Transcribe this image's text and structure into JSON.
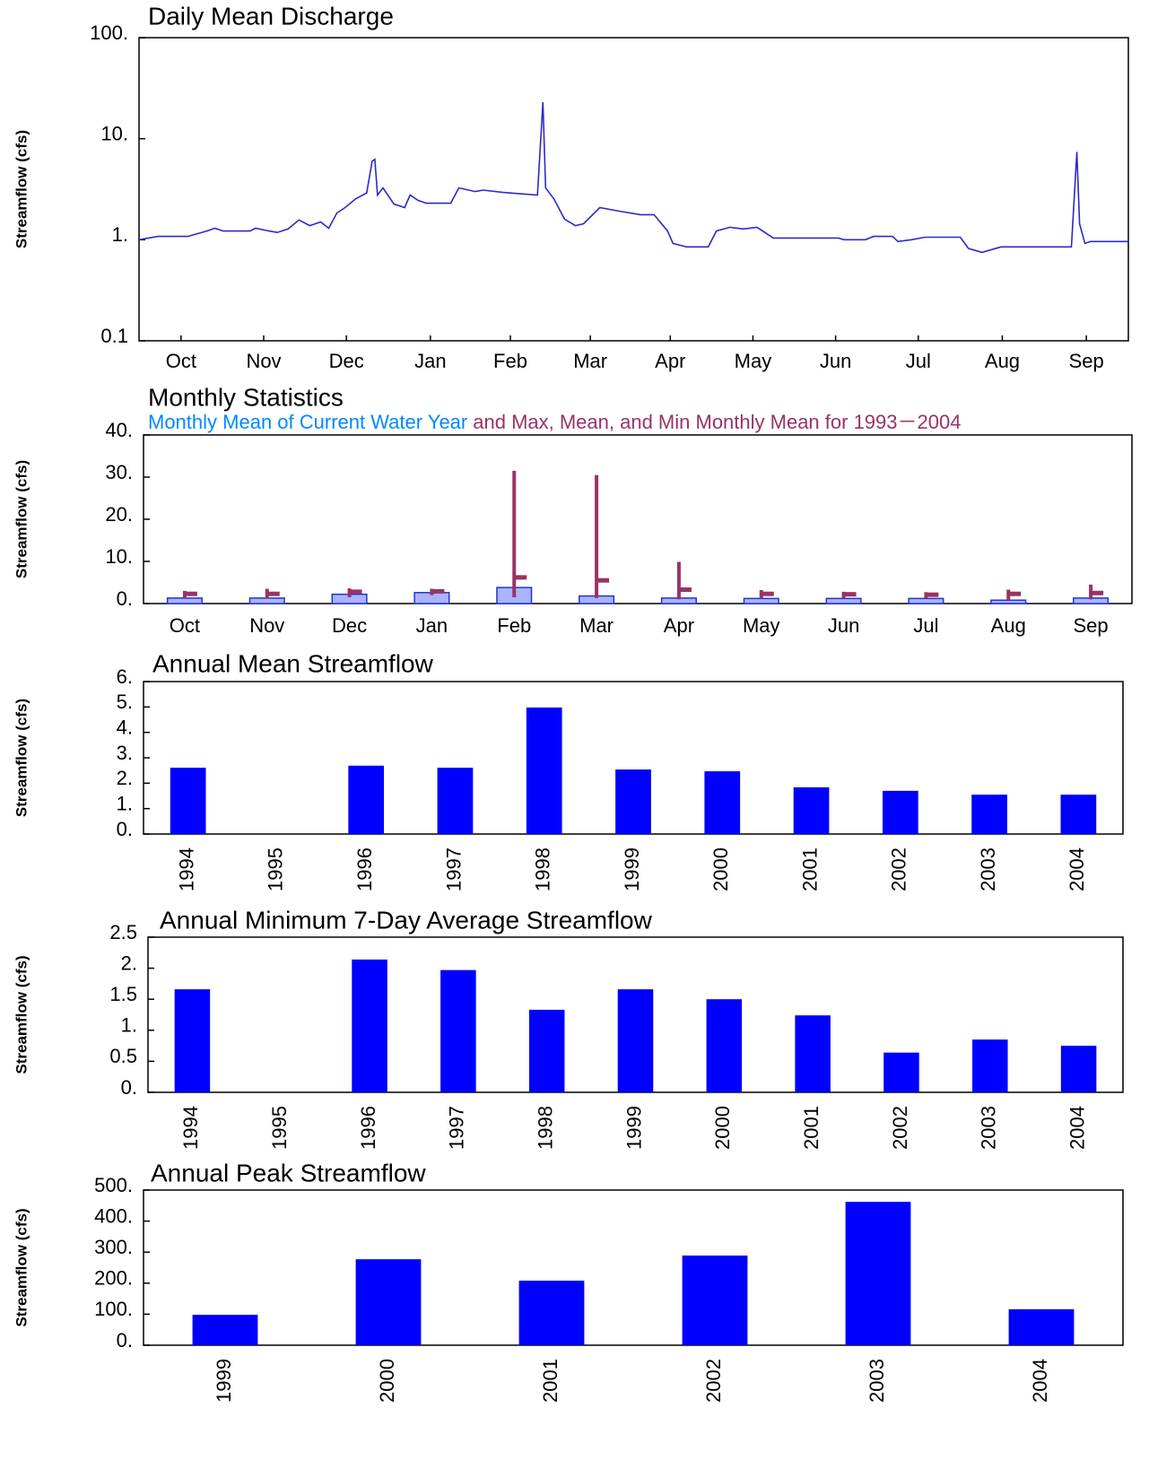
{
  "chart_data": [
    {
      "type": "line",
      "title": "Daily Mean Discharge",
      "ylabel": "Streamflow (cfs)",
      "log_y": true,
      "ylim": [
        0.1,
        100
      ],
      "yticks": [
        {
          "value": 100,
          "label": "100."
        },
        {
          "value": 10,
          "label": "10."
        },
        {
          "value": 1,
          "label": "1."
        },
        0.1
      ],
      "xlim": [
        0,
        365
      ],
      "xticks": [
        {
          "value": 15.5,
          "label": "Oct"
        },
        {
          "value": 46,
          "label": "Nov"
        },
        {
          "value": 76.5,
          "label": "Dec"
        },
        {
          "value": 107.5,
          "label": "Jan"
        },
        {
          "value": 137,
          "label": "Feb"
        },
        {
          "value": 166.5,
          "label": "Mar"
        },
        {
          "value": 196,
          "label": "Apr"
        },
        {
          "value": 226.5,
          "label": "May"
        },
        {
          "value": 257,
          "label": "Jun"
        },
        {
          "value": 287.5,
          "label": "Jul"
        },
        {
          "value": 318.5,
          "label": "Aug"
        },
        {
          "value": 349.5,
          "label": "Sep"
        }
      ],
      "x": [
        0,
        7,
        18,
        25,
        28,
        31,
        41,
        43,
        48,
        51,
        55,
        59,
        63,
        67,
        70,
        73,
        76,
        80,
        84,
        86,
        87,
        88,
        90,
        94,
        98,
        100,
        103,
        106,
        115,
        118,
        124,
        127,
        134,
        137,
        147,
        149,
        150,
        153,
        157,
        161,
        164,
        170,
        177,
        185,
        190,
        195,
        197,
        202,
        210,
        213,
        218,
        223,
        228,
        234,
        240,
        246,
        258,
        260,
        268,
        271,
        278,
        280,
        285,
        290,
        303,
        306,
        311,
        318,
        326,
        334,
        344,
        346,
        347,
        349,
        351,
        365
      ],
      "series": [
        {
          "color": "#2a2acc",
          "values": [
            1.0,
            1.08,
            1.08,
            1.22,
            1.3,
            1.22,
            1.22,
            1.3,
            1.22,
            1.18,
            1.28,
            1.57,
            1.38,
            1.5,
            1.3,
            1.84,
            2.08,
            2.55,
            2.9,
            6.0,
            6.25,
            2.77,
            3.26,
            2.26,
            2.08,
            2.77,
            2.45,
            2.3,
            2.3,
            3.26,
            3.0,
            3.1,
            2.95,
            2.9,
            2.77,
            23,
            3.26,
            2.55,
            1.6,
            1.38,
            1.44,
            2.08,
            1.92,
            1.77,
            1.77,
            1.22,
            0.92,
            0.85,
            0.85,
            1.22,
            1.33,
            1.28,
            1.33,
            1.04,
            1.04,
            1.04,
            1.04,
            1.0,
            1.0,
            1.08,
            1.08,
            0.96,
            1.0,
            1.06,
            1.06,
            0.82,
            0.75,
            0.85,
            0.85,
            0.85,
            0.85,
            7.4,
            1.44,
            0.92,
            0.96,
            0.96
          ]
        }
      ]
    },
    {
      "type": "monthly",
      "title": "Monthly Statistics",
      "ylabel": "Streamflow (cfs)",
      "ylim": [
        0,
        40
      ],
      "yticks": [
        {
          "value": 0,
          "label": "0."
        },
        {
          "value": 10,
          "label": "10."
        },
        {
          "value": 20,
          "label": "20."
        },
        {
          "value": 30,
          "label": "30."
        },
        {
          "value": 40,
          "label": "40."
        }
      ],
      "categories": [
        "Oct",
        "Nov",
        "Dec",
        "Jan",
        "Feb",
        "Mar",
        "Apr",
        "May",
        "Jun",
        "Jul",
        "Aug",
        "Sep"
      ],
      "series": [
        {
          "name": "Monthly Mean of Current Water Year",
          "color": "#0088ff",
          "values": [
            1.3,
            1.3,
            2.2,
            2.6,
            3.8,
            1.8,
            1.3,
            1.2,
            1.2,
            1.2,
            0.8,
            1.3
          ]
        },
        {
          "name": "and Max, Mean, and Min Monthly Mean for 1993－2004",
          "color": "#993366",
          "max": [
            3.0,
            3.5,
            3.6,
            3.5,
            31.5,
            30.5,
            9.9,
            3.2,
            2.8,
            2.7,
            3.3,
            4.5
          ],
          "mean": [
            2.3,
            2.3,
            2.8,
            2.9,
            6.2,
            5.5,
            3.3,
            2.3,
            2.2,
            2.1,
            2.3,
            2.5
          ],
          "min": [
            1.3,
            1.2,
            1.5,
            2.0,
            1.5,
            1.3,
            1.0,
            1.2,
            1.2,
            1.2,
            0.8,
            1.0
          ]
        }
      ]
    },
    {
      "type": "bar",
      "title": "Annual Mean Streamflow",
      "ylabel": "Streamflow (cfs)",
      "color": "#0000ff",
      "ylim": [
        0,
        6
      ],
      "yticks": [
        {
          "value": 0,
          "label": "0."
        },
        {
          "value": 1,
          "label": "1."
        },
        {
          "value": 2,
          "label": "2."
        },
        {
          "value": 3,
          "label": "3."
        },
        {
          "value": 4,
          "label": "4."
        },
        {
          "value": 5,
          "label": "5."
        },
        {
          "value": 6,
          "label": "6."
        }
      ],
      "categories": [
        "1994",
        "1995",
        "1996",
        "1997",
        "1998",
        "1999",
        "2000",
        "2001",
        "2002",
        "2003",
        "2004"
      ],
      "values": [
        2.61,
        null,
        2.69,
        2.61,
        4.98,
        2.54,
        2.47,
        1.84,
        1.7,
        1.55,
        1.55
      ]
    },
    {
      "type": "bar",
      "title": "Annual Minimum 7-Day Average Streamflow",
      "ylabel": "Streamflow (cfs)",
      "color": "#0000ff",
      "ylim": [
        0,
        2.5
      ],
      "yticks": [
        {
          "value": 0,
          "label": "0."
        },
        0.5,
        {
          "value": 1,
          "label": "1."
        },
        1.5,
        {
          "value": 2,
          "label": "2."
        },
        2.5
      ],
      "categories": [
        "1994",
        "1995",
        "1996",
        "1997",
        "1998",
        "1999",
        "2000",
        "2001",
        "2002",
        "2003",
        "2004"
      ],
      "values": [
        1.66,
        null,
        2.14,
        1.97,
        1.33,
        1.66,
        1.5,
        1.24,
        0.64,
        0.85,
        0.75
      ]
    },
    {
      "type": "bar",
      "title": "Annual Peak Streamflow",
      "ylabel": "Streamflow (cfs)",
      "color": "#0000ff",
      "ylim": [
        0,
        500
      ],
      "yticks": [
        {
          "value": 0,
          "label": "0."
        },
        {
          "value": 100,
          "label": "100."
        },
        {
          "value": 200,
          "label": "200."
        },
        {
          "value": 300,
          "label": "300."
        },
        {
          "value": 400,
          "label": "400."
        },
        {
          "value": 500,
          "label": "500."
        }
      ],
      "categories": [
        "1999",
        "2000",
        "2001",
        "2002",
        "2003",
        "2004"
      ],
      "values": [
        98,
        277,
        208,
        289,
        462,
        116
      ]
    }
  ]
}
